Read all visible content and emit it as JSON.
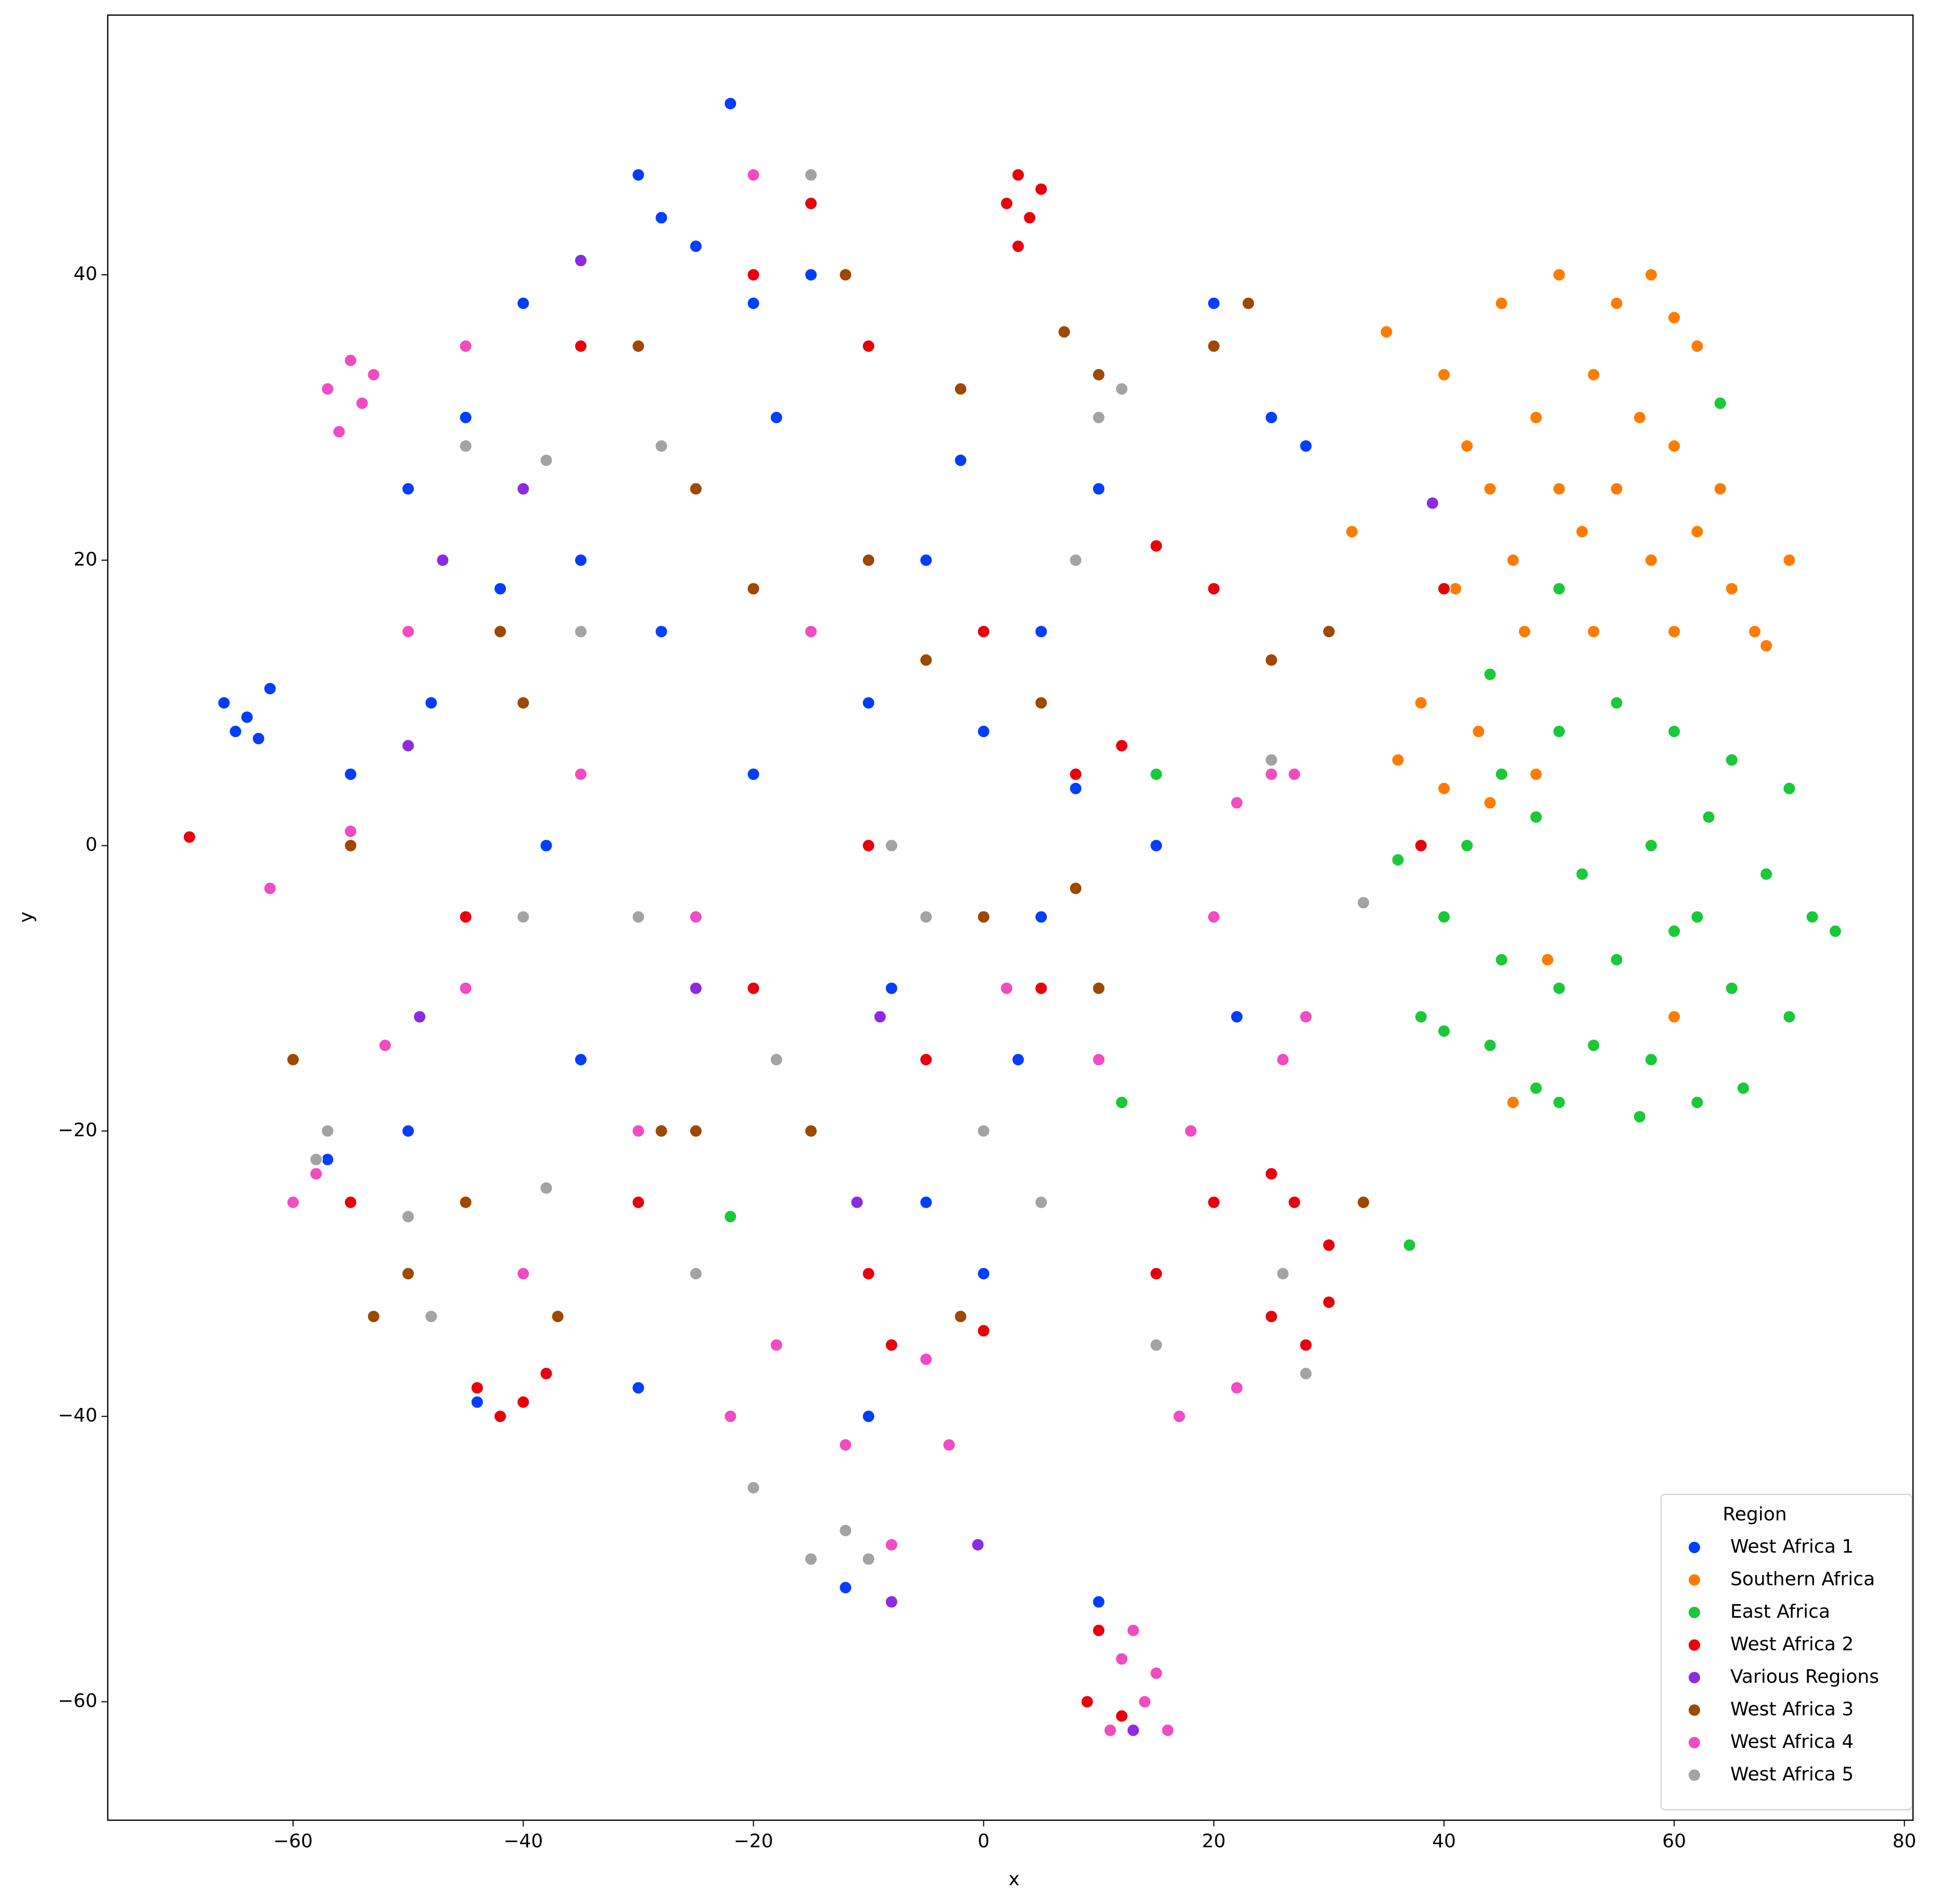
{
  "chart_data": {
    "type": "scatter",
    "xlabel": "x",
    "ylabel": "y",
    "legend_title": "Region",
    "legend": "lower right",
    "xlim": [
      -76.1,
      80.75
    ],
    "ylim": [
      -68.3,
      58.2
    ],
    "xticks": [
      {
        "value": -60,
        "label": "−60"
      },
      {
        "value": -40,
        "label": "−40"
      },
      {
        "value": -20,
        "label": "−20"
      },
      0,
      20,
      40,
      60,
      80
    ],
    "yticks": [
      {
        "value": -60,
        "label": "−60"
      },
      {
        "value": -40,
        "label": "−40"
      },
      {
        "value": -20,
        "label": "−20"
      },
      0,
      20,
      40
    ],
    "series": [
      {
        "name": "West Africa 1",
        "color": "#023eff",
        "x": [
          -66,
          -64,
          -62,
          -65,
          -63,
          -22,
          -30,
          -28,
          -25,
          -20,
          -15,
          -40,
          -45,
          -50,
          -42,
          -35,
          -48,
          -55,
          -38,
          -45,
          -50,
          -40,
          -35,
          -25,
          -20,
          -10,
          0,
          -5,
          5,
          10,
          20,
          25,
          28,
          15,
          5,
          -8,
          -15,
          -5,
          0,
          -20,
          -12,
          -30,
          10,
          -2,
          8,
          -28,
          -18,
          -10,
          3,
          22,
          -57,
          -44
        ],
        "y": [
          10,
          9,
          11,
          8,
          7.5,
          52,
          47,
          44,
          42,
          38,
          40,
          38,
          30,
          25,
          18,
          20,
          10,
          5,
          0,
          -10,
          -20,
          -30,
          -15,
          -5,
          5,
          10,
          8,
          20,
          15,
          25,
          38,
          30,
          28,
          0,
          -5,
          -10,
          -20,
          -25,
          -30,
          -45,
          -52,
          -38,
          -53,
          27,
          4,
          15,
          30,
          -40,
          -15,
          -12,
          -22,
          -39
        ]
      },
      {
        "name": "Southern Africa",
        "color": "#ff7c00",
        "x": [
          35,
          40,
          45,
          50,
          55,
          58,
          60,
          62,
          42,
          48,
          53,
          57,
          60,
          44,
          50,
          55,
          62,
          64,
          46,
          52,
          58,
          65,
          41,
          47,
          53,
          60,
          67,
          38,
          43,
          48,
          40,
          44,
          32,
          30,
          36,
          70,
          68,
          60,
          49,
          46
        ],
        "y": [
          36,
          33,
          38,
          40,
          38,
          40,
          37,
          35,
          28,
          30,
          33,
          30,
          28,
          25,
          25,
          25,
          22,
          25,
          20,
          22,
          20,
          18,
          18,
          15,
          15,
          15,
          15,
          10,
          8,
          5,
          4,
          3,
          22,
          15,
          6,
          20,
          14,
          -12,
          -8,
          -18
        ]
      },
      {
        "name": "East Africa",
        "color": "#1ac938",
        "x": [
          45,
          50,
          55,
          60,
          65,
          70,
          42,
          48,
          52,
          58,
          63,
          68,
          72,
          74,
          40,
          45,
          50,
          55,
          60,
          65,
          70,
          44,
          48,
          53,
          58,
          62,
          66,
          40,
          38,
          50,
          57,
          62,
          36,
          44,
          50,
          64,
          37,
          15,
          12,
          -22
        ],
        "y": [
          5,
          8,
          10,
          8,
          6,
          4,
          0,
          2,
          -2,
          0,
          2,
          -2,
          -5,
          -6,
          -5,
          -8,
          -10,
          -8,
          -6,
          -10,
          -12,
          -14,
          -17,
          -14,
          -15,
          -18,
          -17,
          -13,
          -12,
          -18,
          -19,
          -5,
          -1,
          12,
          18,
          31,
          -28,
          5,
          -18,
          -26
        ]
      },
      {
        "name": "West Africa 2",
        "color": "#e8000b",
        "x": [
          3,
          2,
          4,
          5,
          3,
          -69,
          -44,
          -42,
          -40,
          -38,
          25,
          27,
          30,
          25,
          28,
          30,
          20,
          15,
          10,
          9,
          12,
          0,
          -10,
          -5,
          5,
          8,
          12,
          -15,
          -10,
          -20,
          -35,
          -45,
          -30,
          -20,
          -10,
          0,
          15,
          20,
          38,
          40,
          -55,
          -8
        ],
        "y": [
          47,
          45,
          44,
          46,
          42,
          0.6,
          -38,
          -40,
          -39,
          -37,
          -23,
          -25,
          -28,
          -33,
          -35,
          -32,
          -25,
          -30,
          -55,
          -60,
          -61,
          -34,
          -30,
          -15,
          -10,
          5,
          7,
          45,
          35,
          40,
          35,
          -5,
          -25,
          -10,
          0,
          15,
          21,
          18,
          0,
          18,
          -25,
          -35
        ]
      },
      {
        "name": "Various Regions",
        "color": "#8b2be2",
        "x": [
          -35,
          -47,
          -50,
          -49,
          -8,
          -0.5,
          13,
          -9,
          -40,
          -25,
          -11,
          39
        ],
        "y": [
          41,
          20,
          7,
          -12,
          -53,
          -49,
          -62,
          -12,
          25,
          -10,
          -25,
          24
        ]
      },
      {
        "name": "West Africa 3",
        "color": "#9f4800",
        "x": [
          -10,
          -20,
          -25,
          -30,
          -42,
          -45,
          -37,
          -55,
          -60,
          -5,
          5,
          10,
          23,
          25,
          20,
          -15,
          -25,
          0,
          10,
          -12,
          -2,
          33,
          30,
          -28,
          -40,
          -50,
          -53,
          7,
          -2,
          8
        ],
        "y": [
          20,
          18,
          25,
          35,
          15,
          -25,
          -33,
          0,
          -15,
          13,
          10,
          33,
          38,
          13,
          35,
          -20,
          -20,
          -5,
          -10,
          40,
          32,
          -25,
          15,
          -20,
          10,
          -30,
          -33,
          36,
          -33,
          -3
        ]
      },
      {
        "name": "West Africa 4",
        "color": "#f14cc1",
        "x": [
          -57,
          -55,
          -54,
          -56,
          -53,
          -60,
          -58,
          -62,
          -55,
          -40,
          -30,
          -25,
          -22,
          -18,
          -12,
          -8,
          -5,
          -3,
          12,
          14,
          15,
          11,
          13,
          16,
          17,
          22,
          25,
          27,
          22,
          26,
          28,
          -50,
          -45,
          -35,
          -15,
          2,
          10,
          20,
          18,
          -20,
          -45,
          -52
        ],
        "y": [
          32,
          34,
          31,
          29,
          33,
          -25,
          -23,
          -3,
          1,
          -30,
          -20,
          -5,
          -40,
          -35,
          -42,
          -49,
          -36,
          -42,
          -57,
          -60,
          -58,
          -62,
          -55,
          -62,
          -40,
          -38,
          5,
          5,
          3,
          -15,
          -12,
          15,
          -10,
          5,
          15,
          -10,
          -15,
          -5,
          -20,
          47,
          35,
          -14
        ]
      },
      {
        "name": "West Africa 5",
        "color": "#a3a3a3",
        "x": [
          -58,
          -50,
          -48,
          -38,
          -45,
          -38,
          -35,
          -30,
          -15,
          -12,
          -10,
          -20,
          -5,
          -8,
          10,
          12,
          -28,
          25,
          26,
          28,
          15,
          -15,
          -25,
          0,
          5,
          -40,
          33,
          -57,
          8,
          -18
        ],
        "y": [
          -22,
          -26,
          -33,
          -24,
          28,
          27,
          15,
          -5,
          -50,
          -48,
          -50,
          -45,
          -5,
          0,
          30,
          32,
          28,
          6,
          -30,
          -37,
          -35,
          47,
          -30,
          -20,
          -25,
          -5,
          -4,
          -20,
          20,
          -15
        ]
      }
    ]
  }
}
